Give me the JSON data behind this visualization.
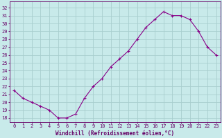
{
  "x": [
    0,
    1,
    2,
    3,
    4,
    5,
    6,
    7,
    8,
    9,
    10,
    11,
    12,
    13,
    14,
    15,
    16,
    17,
    18,
    19,
    20,
    21,
    22,
    23
  ],
  "y": [
    21.5,
    20.5,
    20.0,
    19.5,
    19.0,
    18.0,
    18.0,
    18.5,
    20.5,
    22.0,
    23.0,
    24.5,
    25.5,
    26.5,
    28.0,
    29.5,
    30.5,
    31.5,
    31.0,
    31.0,
    30.5,
    29.0,
    27.0,
    26.0
  ],
  "line_color": "#880088",
  "marker": "+",
  "bg_color": "#c8eaea",
  "grid_color": "#a8cece",
  "xlabel": "Windchill (Refroidissement éolien,°C)",
  "ylabel_ticks": [
    18,
    19,
    20,
    21,
    22,
    23,
    24,
    25,
    26,
    27,
    28,
    29,
    30,
    31,
    32
  ],
  "ylim": [
    17.5,
    32.8
  ],
  "xlim": [
    -0.5,
    23.5
  ],
  "xticks": [
    0,
    1,
    2,
    3,
    4,
    5,
    6,
    7,
    8,
    9,
    10,
    11,
    12,
    13,
    14,
    15,
    16,
    17,
    18,
    19,
    20,
    21,
    22,
    23
  ],
  "title_color": "#660066",
  "axis_color": "#660066",
  "font_size_label": 5.5,
  "font_size_tick": 5.0
}
